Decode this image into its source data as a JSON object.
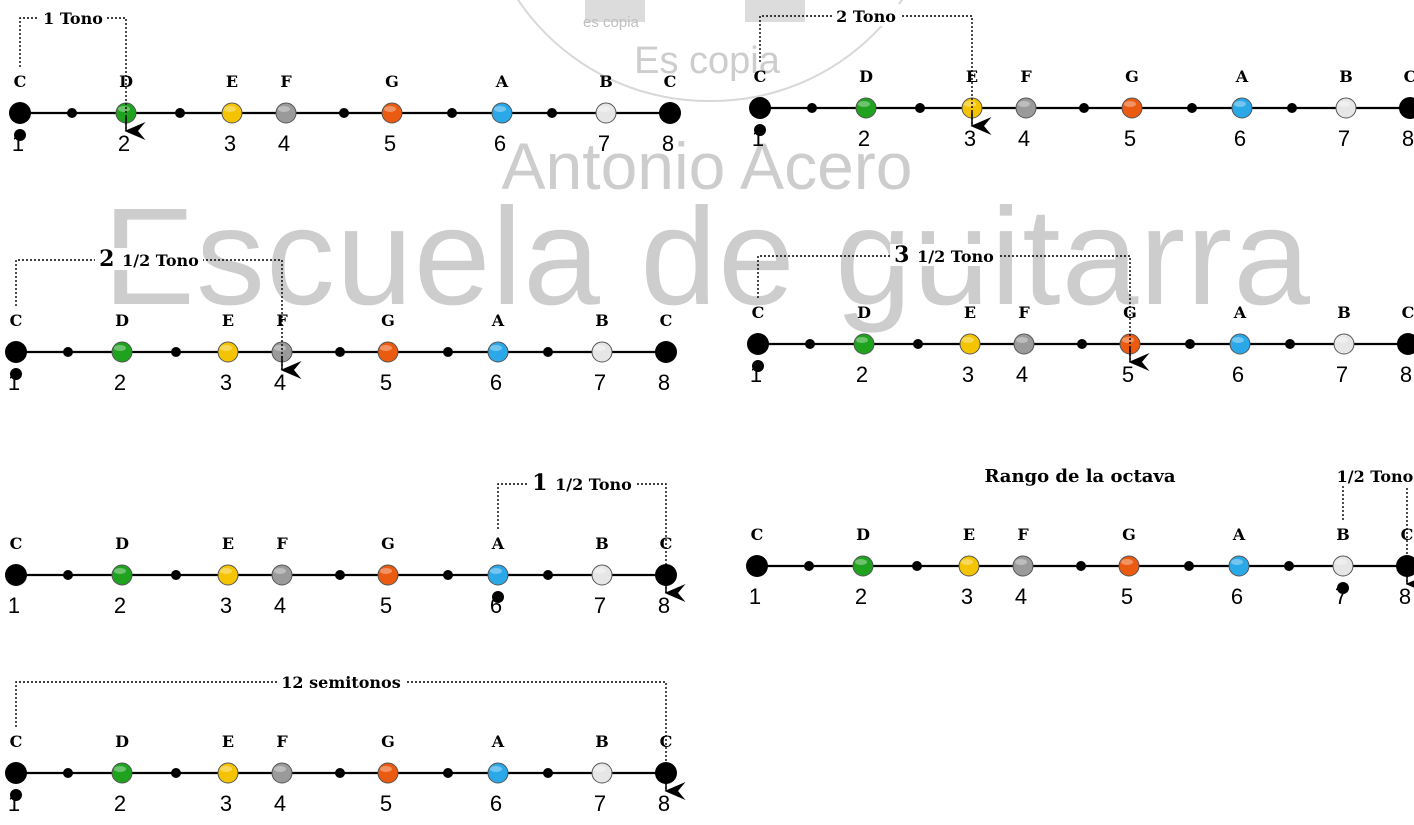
{
  "watermark": {
    "main": "Escuela de guitarra",
    "name": "Antonio Acero",
    "small": "Es copia",
    "tiny": "es copia"
  },
  "notes": [
    "C",
    "D",
    "E",
    "F",
    "G",
    "A",
    "B",
    "C"
  ],
  "degrees": [
    "1",
    "2",
    "3",
    "4",
    "5",
    "6",
    "7",
    "8"
  ],
  "note_colors": {
    "C": "#000000",
    "D": "#1fa31f",
    "E": "#f5c400",
    "F": "#9a9a9a",
    "G": "#ea5a10",
    "A": "#2aa8e8",
    "B": "#e6e6e6"
  },
  "diagrams": [
    {
      "id": "tono-1",
      "label_big": "",
      "label": "1 Tono",
      "from": 1,
      "to": 2
    },
    {
      "id": "tono-2",
      "label_big": "",
      "label": "2 Tono",
      "from": 1,
      "to": 3
    },
    {
      "id": "tono-2-5",
      "label_big": "2",
      "label": "1/2 Tono",
      "from": 1,
      "to": 4
    },
    {
      "id": "tono-3-5",
      "label_big": "3",
      "label": "1/2 Tono",
      "from": 1,
      "to": 5
    },
    {
      "id": "tono-1-5",
      "label_big": "1",
      "label": "1/2 Tono",
      "from": 6,
      "to": 8
    },
    {
      "id": "rango",
      "title": "Rango de la octava",
      "label_big": "",
      "label": "1/2 Tono",
      "from": 7,
      "to": 8
    },
    {
      "id": "semitonos-12",
      "label_big": "",
      "label": "12 semitonos",
      "from": 1,
      "to": 8
    }
  ]
}
